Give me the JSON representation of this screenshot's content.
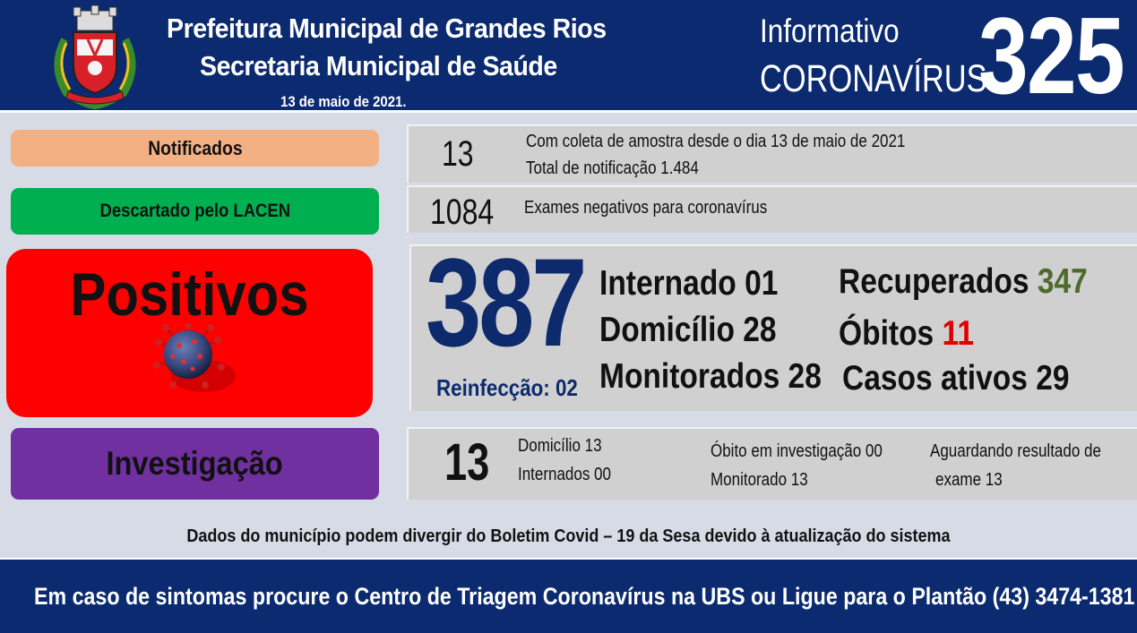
{
  "header": {
    "title": "Prefeitura Municipal de Grandes Rios",
    "subtitle": "Secretaria Municipal de Saúde",
    "date": "13 de maio de 2021.",
    "info_label": "Informativo",
    "corona_label": "CORONAVÍRUS",
    "bulletin_number": "325"
  },
  "colors": {
    "header_bg": "#0b2a6f",
    "notificados": "#f3b183",
    "descartado": "#00b050",
    "positivos": "#fe0000",
    "investigacao": "#7030a0",
    "recuperados_value": "#4e6b2d",
    "obitos_value": "#e00000",
    "number_blue": "#0d2a6c"
  },
  "notificados": {
    "label": "Notificados",
    "value": "13",
    "line1": "Com coleta de amostra desde o dia 13 de maio de 2021",
    "line2": "Total de notificação 1.484"
  },
  "descartado": {
    "label": "Descartado  pelo LACEN",
    "value": "1084",
    "line1": "Exames negativos  para coronavírus"
  },
  "positivos": {
    "label": "Positivos",
    "value": "387",
    "reinfeccao": "Reinfecção:  02",
    "internado": "Internado 01",
    "domicilio": "Domicílio 28",
    "monitorados": "Monitorados 28",
    "recuperados_label": "Recuperados",
    "recuperados_value": "347",
    "obitos_label": "Óbitos",
    "obitos_value": "11",
    "casos_ativos": "Casos ativos 29"
  },
  "investigacao": {
    "label": "Investigação",
    "value": "13",
    "domicilio": "Domicílio 13",
    "internados": "Internados 00",
    "obito": "Óbito  em investigação  00",
    "monitorado": "Monitorado 13",
    "aguardando1": "Aguardando resultado de",
    "aguardando2": "exame 13"
  },
  "note": "Dados do município  podem  divergir  do Boletim  Covid – 19 da Sesa devido à atualização  do sistema",
  "footer": "Em caso de sintomas  procure  o Centro de Triagem  Coronavírus  na UBS ou Ligue  para  o Plantão  (43) 3474-1381",
  "icons": [
    "municipal-crest-icon",
    "coronavirus-icon"
  ]
}
